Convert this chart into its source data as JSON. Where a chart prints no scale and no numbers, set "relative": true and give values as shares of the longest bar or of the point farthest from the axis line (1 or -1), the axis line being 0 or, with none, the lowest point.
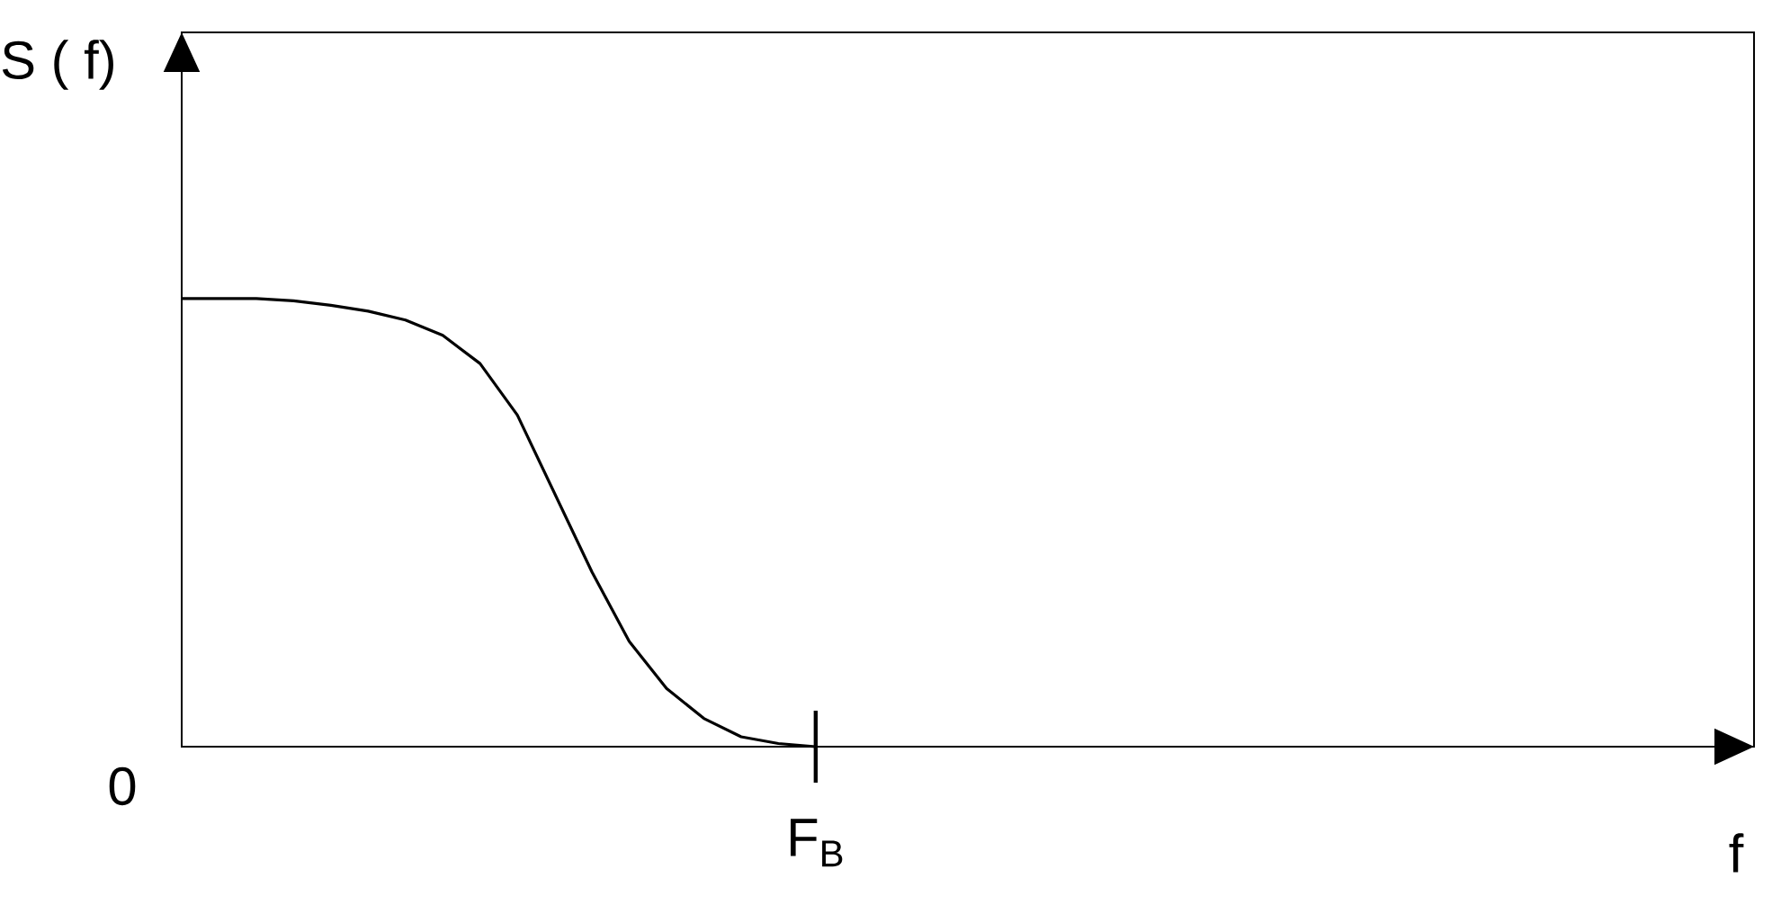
{
  "chart_data": {
    "type": "line",
    "relative": true,
    "color": "#000000",
    "ylabel": "S ( f)",
    "annotations": [
      "0",
      "F$_{B}$",
      "f"
    ],
    "categories": [
      null,
      null,
      null,
      null,
      null,
      null,
      null,
      null,
      null,
      null,
      null,
      null,
      null,
      null,
      null,
      null,
      null,
      null
    ],
    "values": [
      1.0,
      1.0,
      1.0,
      0.995,
      0.985,
      0.972,
      0.952,
      0.918,
      0.855,
      0.74,
      0.565,
      0.39,
      0.235,
      0.13,
      0.063,
      0.022,
      0.007,
      0
    ]
  }
}
